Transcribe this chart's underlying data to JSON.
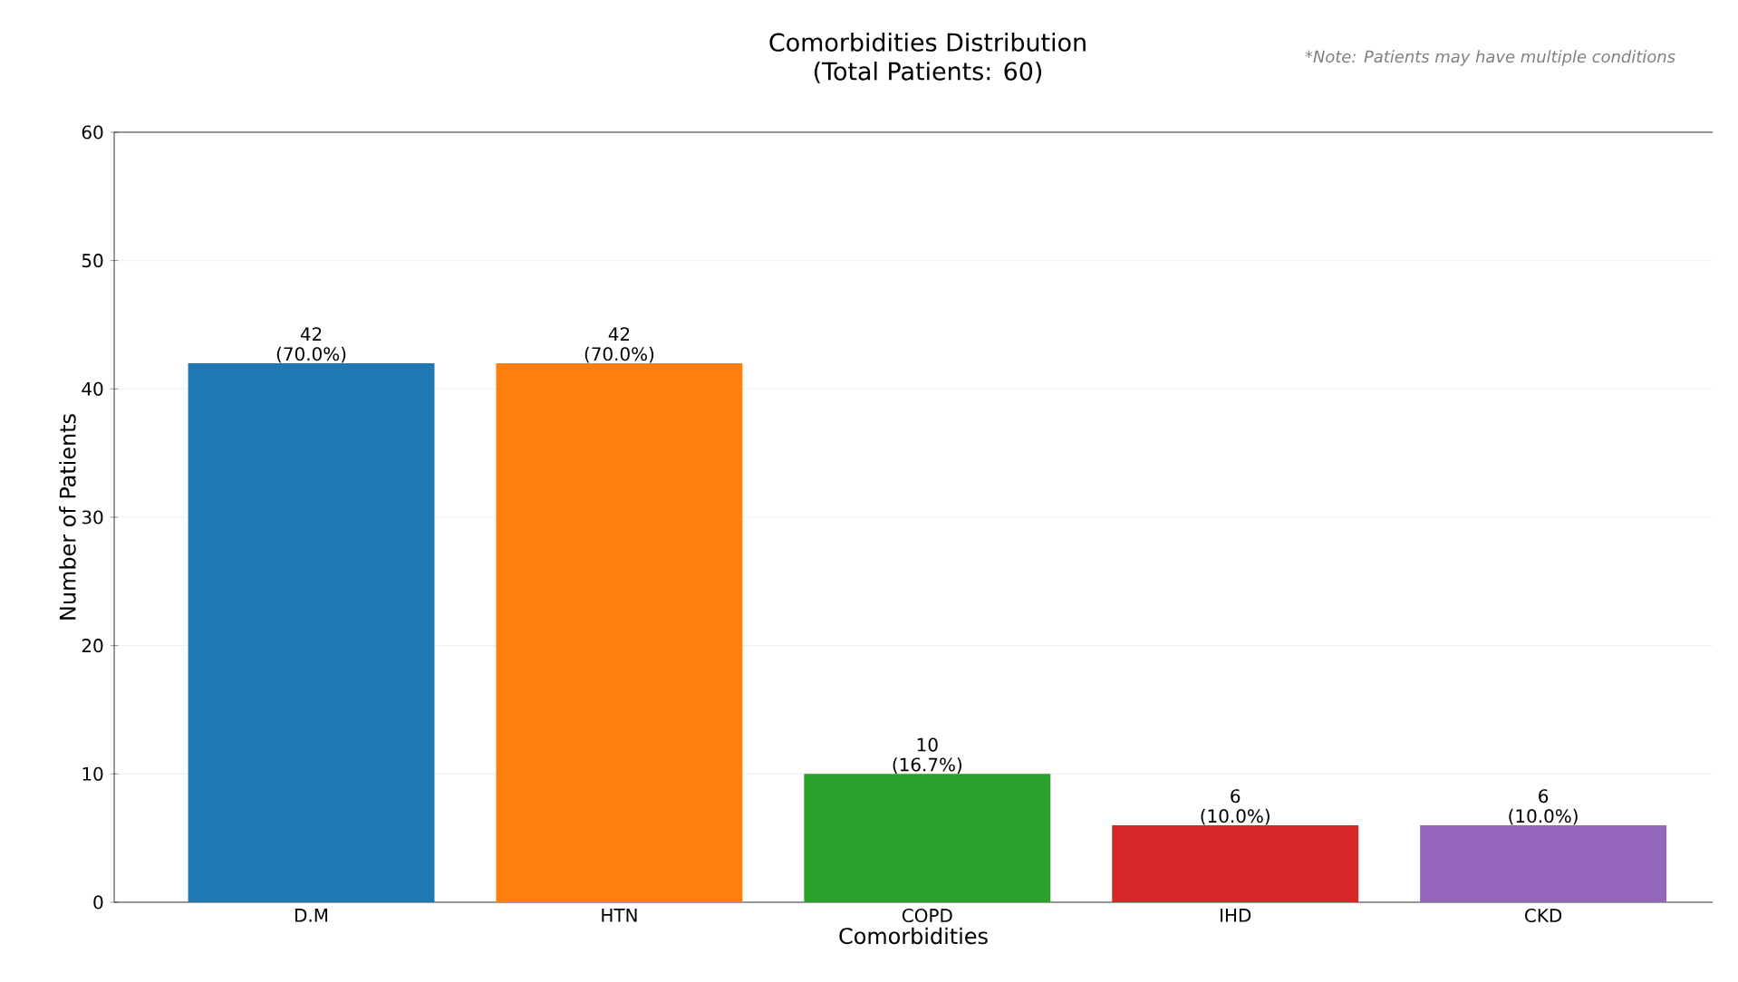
{
  "chart_data": {
    "type": "bar",
    "title": "Comorbidities Distribution",
    "subtitle": "(Total Patients: 60)",
    "xlabel": "Comorbidities",
    "ylabel": "Number of Patients",
    "annotations": [
      "*Note: Patients may have multiple conditions"
    ],
    "categories": [
      "D.M",
      "HTN",
      "COPD",
      "IHD",
      "CKD"
    ],
    "values": [
      42,
      42,
      10,
      6,
      6
    ],
    "colors": [
      "#1f77b4",
      "#ff7f0e",
      "#2ca02c",
      "#d62728",
      "#9467bd"
    ],
    "value_labels": [
      "42 (70.0%)",
      "42 (70.0%)",
      "10 (16.7%)",
      "6 (10.0%)",
      "6 (10.0%)"
    ],
    "ylim": [
      0,
      60
    ],
    "yticks": [
      0,
      10,
      20,
      30,
      40,
      50,
      60
    ],
    "grid": "y"
  }
}
